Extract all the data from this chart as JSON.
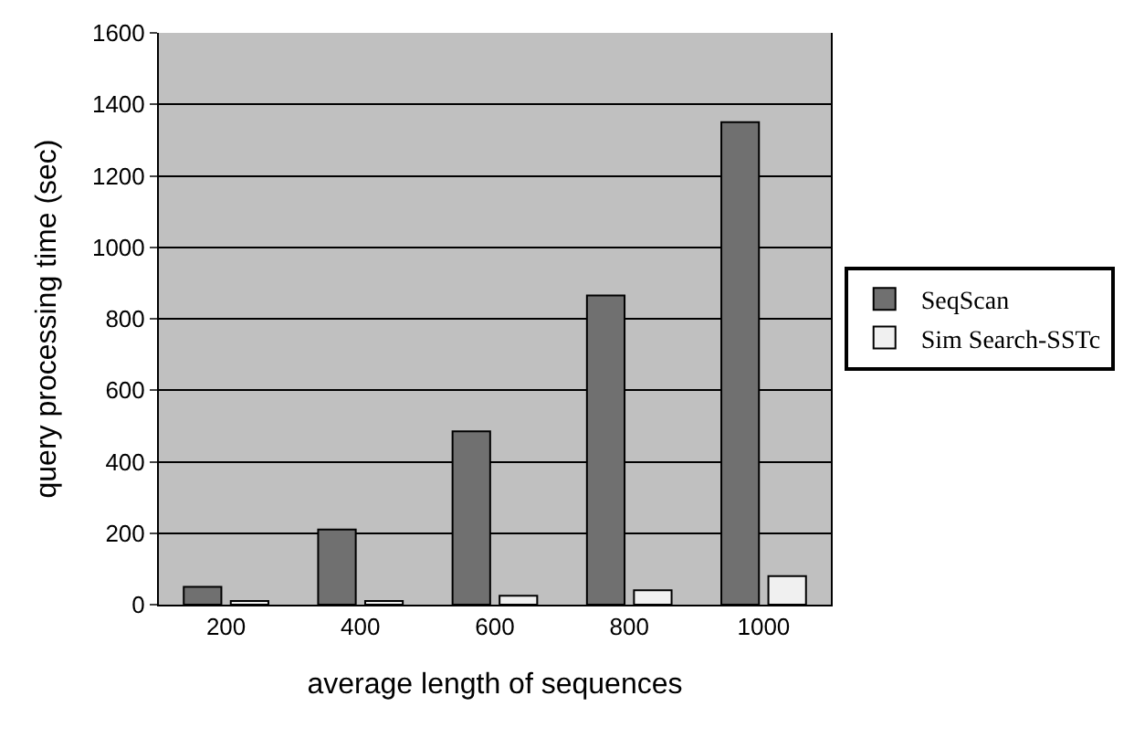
{
  "chart_data": {
    "type": "bar",
    "xlabel": "average length of sequences",
    "ylabel": "query processing time (sec)",
    "categories": [
      "200",
      "400",
      "600",
      "800",
      "1000"
    ],
    "series": [
      {
        "name": "SeqScan",
        "color": "#707070",
        "values": [
          50,
          210,
          485,
          865,
          1350
        ]
      },
      {
        "name": "Sim Search-SSTc",
        "color": "#f0f0f0",
        "values": [
          10,
          10,
          25,
          40,
          80
        ]
      }
    ],
    "ylim": [
      0,
      1600
    ],
    "yticks": [
      0,
      200,
      400,
      600,
      800,
      1000,
      1200,
      1400,
      1600
    ],
    "grid": "y",
    "legend": "right"
  }
}
